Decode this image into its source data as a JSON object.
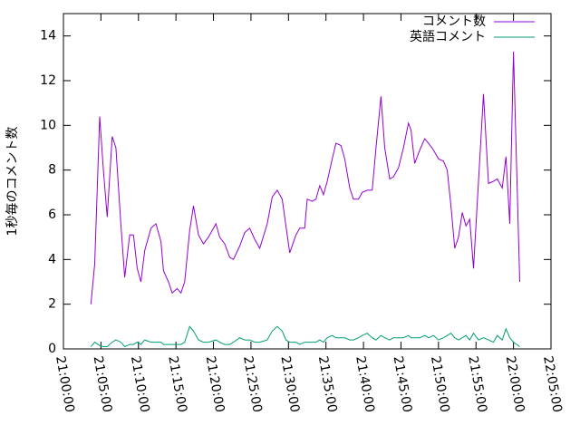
{
  "chart_data": {
    "type": "line",
    "ylabel": "1秒毎のコメント数",
    "x": [
      "21:03:40",
      "21:04:10",
      "21:04:50",
      "21:05:20",
      "21:05:50",
      "21:06:30",
      "21:07:00",
      "21:07:40",
      "21:08:10",
      "21:08:50",
      "21:09:20",
      "21:09:50",
      "21:10:20",
      "21:10:50",
      "21:11:40",
      "21:12:20",
      "21:13:00",
      "21:13:20",
      "21:14:00",
      "21:14:30",
      "21:15:10",
      "21:15:40",
      "21:16:10",
      "21:16:50",
      "21:17:20",
      "21:18:00",
      "21:18:40",
      "21:19:20",
      "21:20:20",
      "21:20:50",
      "21:21:30",
      "21:22:10",
      "21:22:40",
      "21:23:30",
      "21:24:10",
      "21:24:50",
      "21:25:30",
      "21:26:10",
      "21:27:10",
      "21:27:50",
      "21:28:30",
      "21:29:10",
      "21:29:40",
      "21:30:10",
      "21:31:00",
      "21:31:30",
      "21:32:10",
      "21:32:30",
      "21:33:10",
      "21:33:40",
      "21:34:10",
      "21:34:40",
      "21:35:10",
      "21:35:50",
      "21:36:20",
      "21:37:00",
      "21:37:30",
      "21:38:10",
      "21:38:40",
      "21:39:20",
      "21:39:50",
      "21:40:30",
      "21:41:10",
      "21:41:40",
      "21:42:20",
      "21:42:50",
      "21:43:30",
      "21:44:00",
      "21:44:40",
      "21:45:20",
      "21:46:00",
      "21:46:20",
      "21:46:50",
      "21:47:30",
      "21:48:10",
      "21:48:40",
      "21:49:20",
      "21:50:00",
      "21:50:40",
      "21:51:10",
      "21:51:40",
      "21:52:10",
      "21:52:40",
      "21:53:10",
      "21:53:40",
      "21:54:10",
      "21:54:40",
      "21:55:20",
      "21:56:00",
      "21:56:40",
      "21:57:20",
      "21:57:50",
      "21:58:30",
      "21:59:00",
      "21:59:30",
      "22:00:00",
      "22:00:50"
    ],
    "series": [
      {
        "name": "コメント数",
        "color": "#9400d3",
        "values": [
          2.0,
          3.8,
          10.4,
          8.0,
          5.9,
          9.5,
          9.0,
          5.5,
          3.2,
          5.1,
          5.1,
          3.6,
          3.0,
          4.4,
          5.4,
          5.6,
          4.8,
          3.5,
          3.0,
          2.5,
          2.7,
          2.5,
          3.0,
          5.3,
          6.4,
          5.1,
          4.7,
          5.0,
          5.6,
          5.0,
          4.7,
          4.1,
          4.0,
          4.6,
          5.2,
          5.4,
          4.9,
          4.5,
          5.6,
          6.8,
          7.1,
          6.7,
          5.5,
          4.3,
          5.1,
          5.4,
          5.4,
          6.7,
          6.6,
          6.7,
          7.3,
          6.9,
          7.5,
          8.5,
          9.2,
          9.1,
          8.5,
          7.2,
          6.7,
          6.7,
          7.0,
          7.1,
          7.1,
          9.0,
          11.3,
          9.0,
          7.6,
          7.7,
          8.1,
          9.0,
          10.1,
          9.8,
          8.3,
          8.9,
          9.4,
          9.2,
          8.9,
          8.5,
          8.4,
          8.0,
          6.4,
          4.5,
          5.0,
          6.1,
          5.5,
          5.8,
          3.6,
          7.5,
          11.4,
          7.4,
          7.5,
          7.6,
          7.2,
          8.6,
          5.6,
          13.3,
          3.0
        ]
      },
      {
        "name": "英語コメント",
        "color": "#009e73",
        "values": [
          0.1,
          0.3,
          0.15,
          0.1,
          0.1,
          0.3,
          0.4,
          0.3,
          0.1,
          0.2,
          0.2,
          0.3,
          0.2,
          0.4,
          0.3,
          0.3,
          0.3,
          0.2,
          0.2,
          0.2,
          0.2,
          0.2,
          0.3,
          1.0,
          0.8,
          0.4,
          0.3,
          0.3,
          0.4,
          0.3,
          0.2,
          0.2,
          0.3,
          0.5,
          0.4,
          0.4,
          0.3,
          0.3,
          0.4,
          0.8,
          1.0,
          0.8,
          0.4,
          0.3,
          0.3,
          0.2,
          0.3,
          0.3,
          0.3,
          0.3,
          0.4,
          0.3,
          0.5,
          0.6,
          0.5,
          0.5,
          0.5,
          0.4,
          0.4,
          0.5,
          0.6,
          0.7,
          0.5,
          0.4,
          0.6,
          0.5,
          0.4,
          0.5,
          0.5,
          0.5,
          0.6,
          0.5,
          0.5,
          0.5,
          0.6,
          0.5,
          0.6,
          0.4,
          0.5,
          0.6,
          0.7,
          0.5,
          0.4,
          0.5,
          0.6,
          0.4,
          0.7,
          0.4,
          0.5,
          0.4,
          0.3,
          0.6,
          0.4,
          0.9,
          0.5,
          0.3,
          0.1
        ]
      }
    ],
    "xlim": [
      "21:00:00",
      "22:05:00"
    ],
    "xticks": [
      "21:00:00",
      "21:05:00",
      "21:10:00",
      "21:15:00",
      "21:20:00",
      "21:25:00",
      "21:30:00",
      "21:35:00",
      "21:40:00",
      "21:45:00",
      "21:50:00",
      "21:55:00",
      "22:00:00",
      "22:05:00"
    ],
    "ylim": [
      0,
      15
    ],
    "yticks": [
      0,
      2,
      4,
      6,
      8,
      10,
      12,
      14
    ],
    "legend": "top-right"
  }
}
